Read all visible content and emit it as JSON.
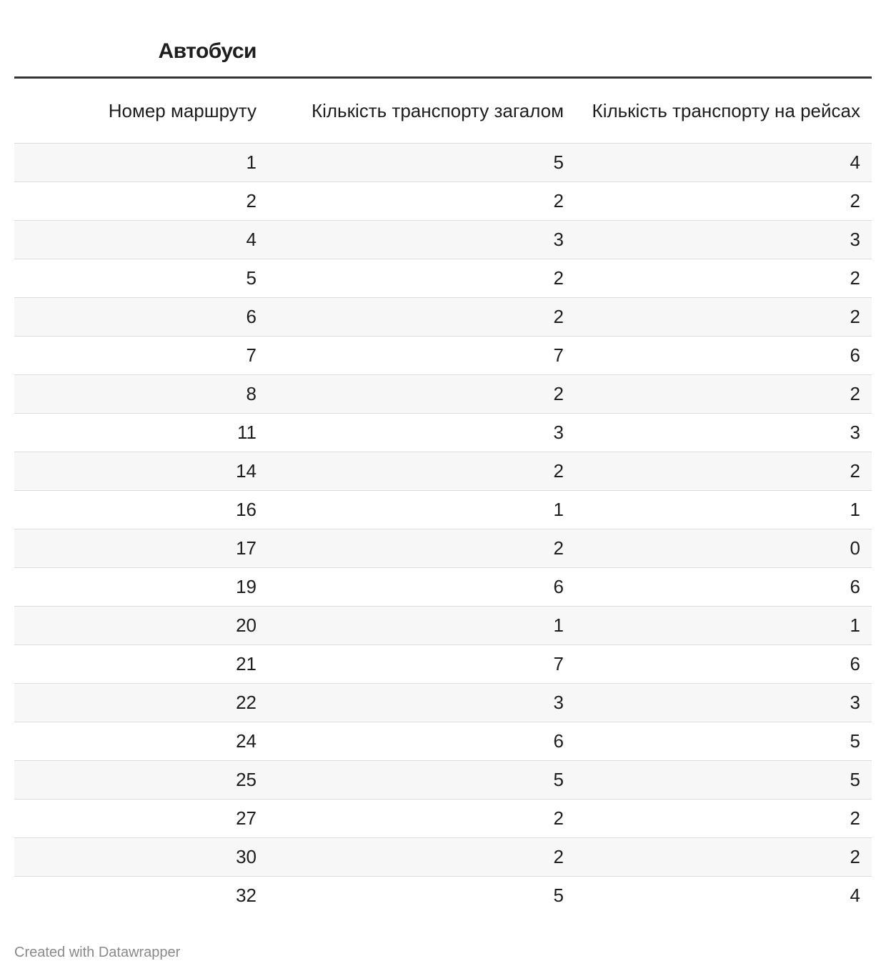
{
  "title": "Автобуси",
  "table": {
    "headers": [
      "Номер маршруту",
      "Кількість транспорту загалом",
      "Кількість транспорту на рейсах"
    ],
    "rows": [
      [
        1,
        5,
        4
      ],
      [
        2,
        2,
        2
      ],
      [
        4,
        3,
        3
      ],
      [
        5,
        2,
        2
      ],
      [
        6,
        2,
        2
      ],
      [
        7,
        7,
        6
      ],
      [
        8,
        2,
        2
      ],
      [
        11,
        3,
        3
      ],
      [
        14,
        2,
        2
      ],
      [
        16,
        1,
        1
      ],
      [
        17,
        2,
        0
      ],
      [
        19,
        6,
        6
      ],
      [
        20,
        1,
        1
      ],
      [
        21,
        7,
        6
      ],
      [
        22,
        3,
        3
      ],
      [
        24,
        6,
        5
      ],
      [
        25,
        5,
        5
      ],
      [
        27,
        2,
        2
      ],
      [
        30,
        2,
        2
      ],
      [
        32,
        5,
        4
      ]
    ]
  },
  "footer": "Created with Datawrapper"
}
